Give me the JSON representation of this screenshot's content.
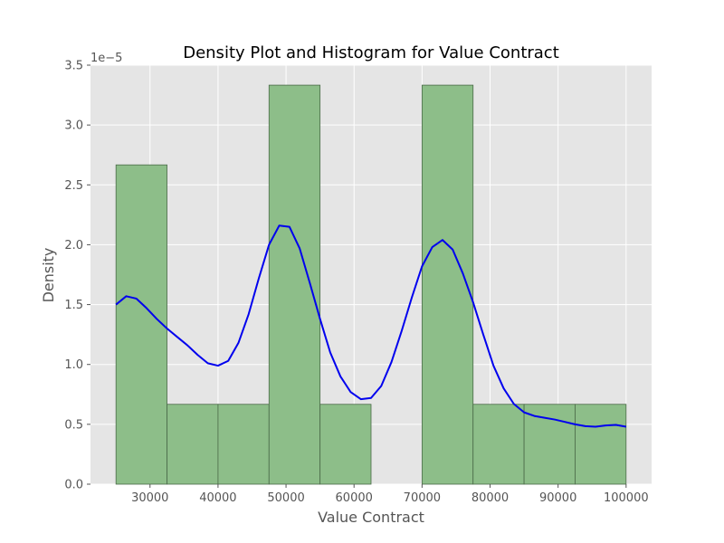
{
  "chart_data": {
    "type": "bar",
    "title": "Density Plot and Histogram for Value Contract",
    "xlabel": "Value Contract",
    "ylabel": "Density",
    "y_offset_label": "1e−5",
    "xlim": [
      21250,
      103750
    ],
    "ylim": [
      0,
      3.5
    ],
    "x_ticks": [
      30000,
      40000,
      50000,
      60000,
      70000,
      80000,
      90000,
      100000
    ],
    "x_tick_labels": [
      "30000",
      "40000",
      "50000",
      "60000",
      "70000",
      "80000",
      "90000",
      "100000"
    ],
    "y_ticks": [
      0,
      0.5,
      1.0,
      1.5,
      2.0,
      2.5,
      3.0,
      3.5
    ],
    "y_tick_labels": [
      "0.0",
      "0.5",
      "1.0",
      "1.5",
      "2.0",
      "2.5",
      "3.0",
      "3.5"
    ],
    "grid": true,
    "histogram": {
      "bin_edges": [
        25000,
        32500,
        40000,
        47500,
        55000,
        62500,
        70000,
        77500,
        85000,
        92500,
        100000
      ],
      "values": [
        2.667,
        0.667,
        0.667,
        3.333,
        0.667,
        0,
        3.333,
        0.667,
        0.667,
        0.667
      ],
      "color": "#8bbd87",
      "edge_color": "#4a6a48"
    },
    "density_line": {
      "color": "#0000ee",
      "x": [
        25000,
        26500,
        28000,
        29500,
        31000,
        32500,
        34000,
        35500,
        37000,
        38500,
        40000,
        41500,
        43000,
        44500,
        46000,
        47500,
        49000,
        50500,
        52000,
        53500,
        55000,
        56500,
        58000,
        59500,
        61000,
        62500,
        64000,
        65500,
        67000,
        68500,
        70000,
        71500,
        73000,
        74500,
        76000,
        77500,
        79000,
        80500,
        82000,
        83500,
        85000,
        86500,
        88000,
        89500,
        91000,
        92500,
        94000,
        95500,
        97000,
        98500,
        100000
      ],
      "y": [
        1.5,
        1.57,
        1.55,
        1.47,
        1.38,
        1.3,
        1.23,
        1.16,
        1.08,
        1.01,
        0.99,
        1.03,
        1.18,
        1.42,
        1.72,
        2.0,
        2.16,
        2.15,
        1.97,
        1.68,
        1.38,
        1.1,
        0.9,
        0.77,
        0.71,
        0.72,
        0.82,
        1.02,
        1.28,
        1.56,
        1.82,
        1.98,
        2.04,
        1.96,
        1.76,
        1.52,
        1.25,
        0.99,
        0.8,
        0.67,
        0.6,
        0.57,
        0.555,
        0.54,
        0.52,
        0.5,
        0.485,
        0.48,
        0.49,
        0.495,
        0.48
      ]
    }
  }
}
